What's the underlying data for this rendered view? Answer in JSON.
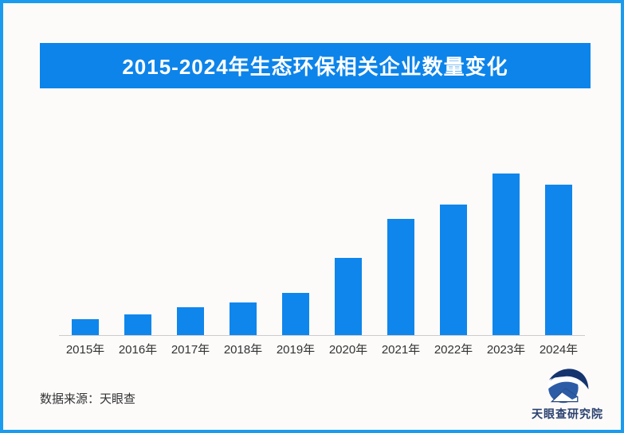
{
  "page": {
    "background": "#fcfbfa",
    "border_color": "#1b9bed"
  },
  "header": {
    "title": "2015-2024年生态环保相关企业数量变化",
    "banner_color": "#0d84ea",
    "title_color": "#ffffff"
  },
  "chart_data": {
    "type": "bar",
    "title": "2015-2024年生态环保相关企业数量变化",
    "categories": [
      "2015年",
      "2016年",
      "2017年",
      "2018年",
      "2019年",
      "2020年",
      "2021年",
      "2022年",
      "2023年",
      "2024年"
    ],
    "values": [
      10,
      13,
      17,
      20,
      26,
      48,
      72,
      81,
      100,
      93
    ],
    "value_scale_note": "relative bar heights, tallest bar (2023年) = 100; no numeric axis or data labels are shown in the chart",
    "xlabel": "",
    "ylabel": "",
    "ylim": [
      0,
      100
    ],
    "grid": false,
    "legend": false,
    "bar_color": "#0f86ec",
    "axis_line_color": "#cccccc",
    "tick_label_color": "#333333"
  },
  "footer": {
    "source": "数据来源：天眼查",
    "brand": "天眼查研究院",
    "brand_color": "#2a416f",
    "logo_icon": "tianyancha-eye-house-logo"
  }
}
